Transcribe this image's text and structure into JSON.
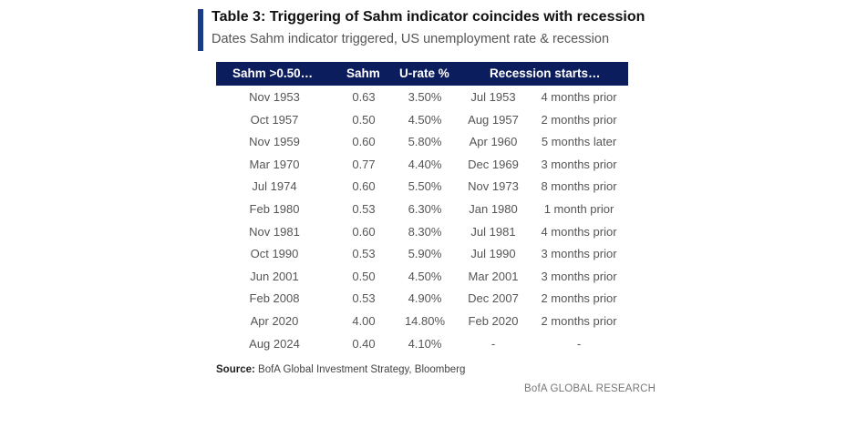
{
  "title": "Table 3: Triggering of Sahm indicator coincides with recession",
  "subtitle": "Dates Sahm indicator triggered, US unemployment rate & recession",
  "columns": {
    "sahm_trigger": "Sahm >0.50…",
    "sahm": "Sahm",
    "urate": "U-rate %",
    "recession": "Recession starts…"
  },
  "rows": [
    {
      "date": "Nov 1953",
      "sahm": "0.63",
      "urate": "3.50%",
      "recession": "Jul 1953",
      "lead": "4 months prior"
    },
    {
      "date": "Oct 1957",
      "sahm": "0.50",
      "urate": "4.50%",
      "recession": "Aug 1957",
      "lead": "2 months prior"
    },
    {
      "date": "Nov 1959",
      "sahm": "0.60",
      "urate": "5.80%",
      "recession": "Apr 1960",
      "lead": "5 months later"
    },
    {
      "date": "Mar 1970",
      "sahm": "0.77",
      "urate": "4.40%",
      "recession": "Dec 1969",
      "lead": "3 months prior"
    },
    {
      "date": "Jul 1974",
      "sahm": "0.60",
      "urate": "5.50%",
      "recession": "Nov 1973",
      "lead": "8 months prior"
    },
    {
      "date": "Feb 1980",
      "sahm": "0.53",
      "urate": "6.30%",
      "recession": "Jan 1980",
      "lead": "1 month prior"
    },
    {
      "date": "Nov 1981",
      "sahm": "0.60",
      "urate": "8.30%",
      "recession": "Jul 1981",
      "lead": "4 months prior"
    },
    {
      "date": "Oct 1990",
      "sahm": "0.53",
      "urate": "5.90%",
      "recession": "Jul 1990",
      "lead": "3 months prior"
    },
    {
      "date": "Jun 2001",
      "sahm": "0.50",
      "urate": "4.50%",
      "recession": "Mar 2001",
      "lead": "3 months prior"
    },
    {
      "date": "Feb 2008",
      "sahm": "0.53",
      "urate": "4.90%",
      "recession": "Dec 2007",
      "lead": "2 months prior"
    },
    {
      "date": "Apr 2020",
      "sahm": "4.00",
      "urate": "14.80%",
      "recession": "Feb 2020",
      "lead": "2 months prior"
    },
    {
      "date": "Aug 2024",
      "sahm": "0.40",
      "urate": "4.10%",
      "recession": "-",
      "lead": "-"
    }
  ],
  "source_label": "Source:",
  "source_text": "BofA Global Investment Strategy, Bloomberg",
  "brand": "BofA GLOBAL RESEARCH",
  "colors": {
    "header_bg": "#0c1d5e",
    "accent": "#1a3a8a"
  }
}
